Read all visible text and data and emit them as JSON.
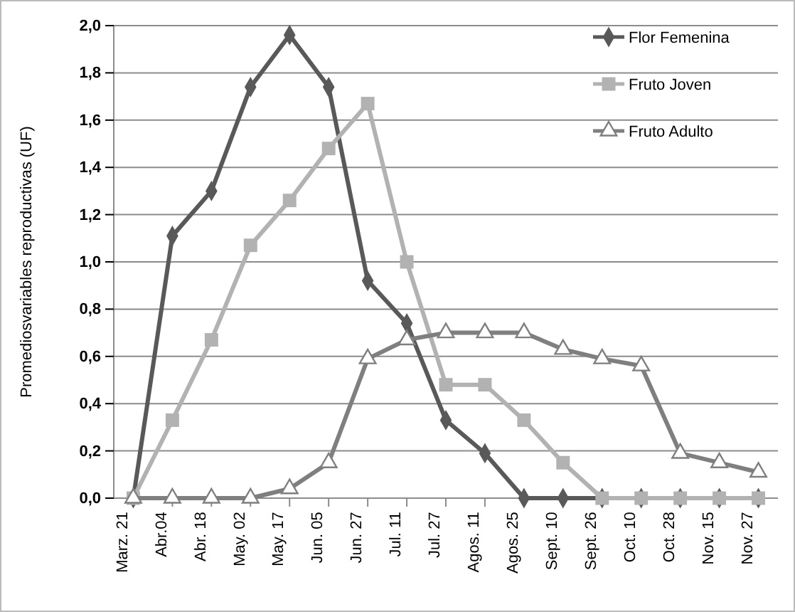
{
  "chart_data": {
    "type": "line",
    "ylabel": "Promediosvariables reproductivas (UF)",
    "categories": [
      "Marz. 21",
      "Abr.04",
      "Abr. 18",
      "May. 02",
      "May. 17",
      "Jun. 05",
      "Jun. 27",
      "Jul. 11",
      "Jul. 27",
      "Agos. 11",
      "Agos. 25",
      "Sept. 10",
      "Sept. 26",
      "Oct. 10",
      "Oct. 28",
      "Nov. 15",
      "Nov. 27"
    ],
    "series": [
      {
        "name": "Flor Femenina",
        "color": "#595959",
        "marker": "diamond",
        "values": [
          0,
          1.11,
          1.3,
          1.74,
          1.96,
          1.74,
          0.92,
          0.74,
          0.33,
          0.19,
          0,
          0,
          0,
          0,
          0,
          0,
          0
        ]
      },
      {
        "name": "Fruto Joven",
        "color": "#b2b2b2",
        "marker": "square",
        "values": [
          0,
          0.33,
          0.67,
          1.07,
          1.26,
          1.48,
          1.67,
          1.0,
          0.48,
          0.48,
          0.33,
          0.15,
          0,
          0,
          0,
          0,
          0
        ]
      },
      {
        "name": "Fruto Adulto",
        "color": "#7f7f7f",
        "marker": "triangle",
        "values": [
          0,
          0,
          0,
          0,
          0.04,
          0.15,
          0.59,
          0.67,
          0.7,
          0.7,
          0.7,
          0.63,
          0.59,
          0.56,
          0.19,
          0.15,
          0.11
        ]
      }
    ],
    "ylim": [
      0,
      2
    ],
    "yticks": [
      {
        "value": 0,
        "label": "0,0"
      },
      {
        "value": 0.2,
        "label": "0,2"
      },
      {
        "value": 0.4,
        "label": "0,4"
      },
      {
        "value": 0.6,
        "label": "0,6"
      },
      {
        "value": 0.8,
        "label": "0,8"
      },
      {
        "value": 1,
        "label": "1,0"
      },
      {
        "value": 1.2,
        "label": "1,2"
      },
      {
        "value": 1.4,
        "label": "1,4"
      },
      {
        "value": 1.6,
        "label": "1,6"
      },
      {
        "value": 1.8,
        "label": "1,8"
      },
      {
        "value": 2,
        "label": "2,0"
      }
    ],
    "grid": "y",
    "legend": "top right"
  }
}
